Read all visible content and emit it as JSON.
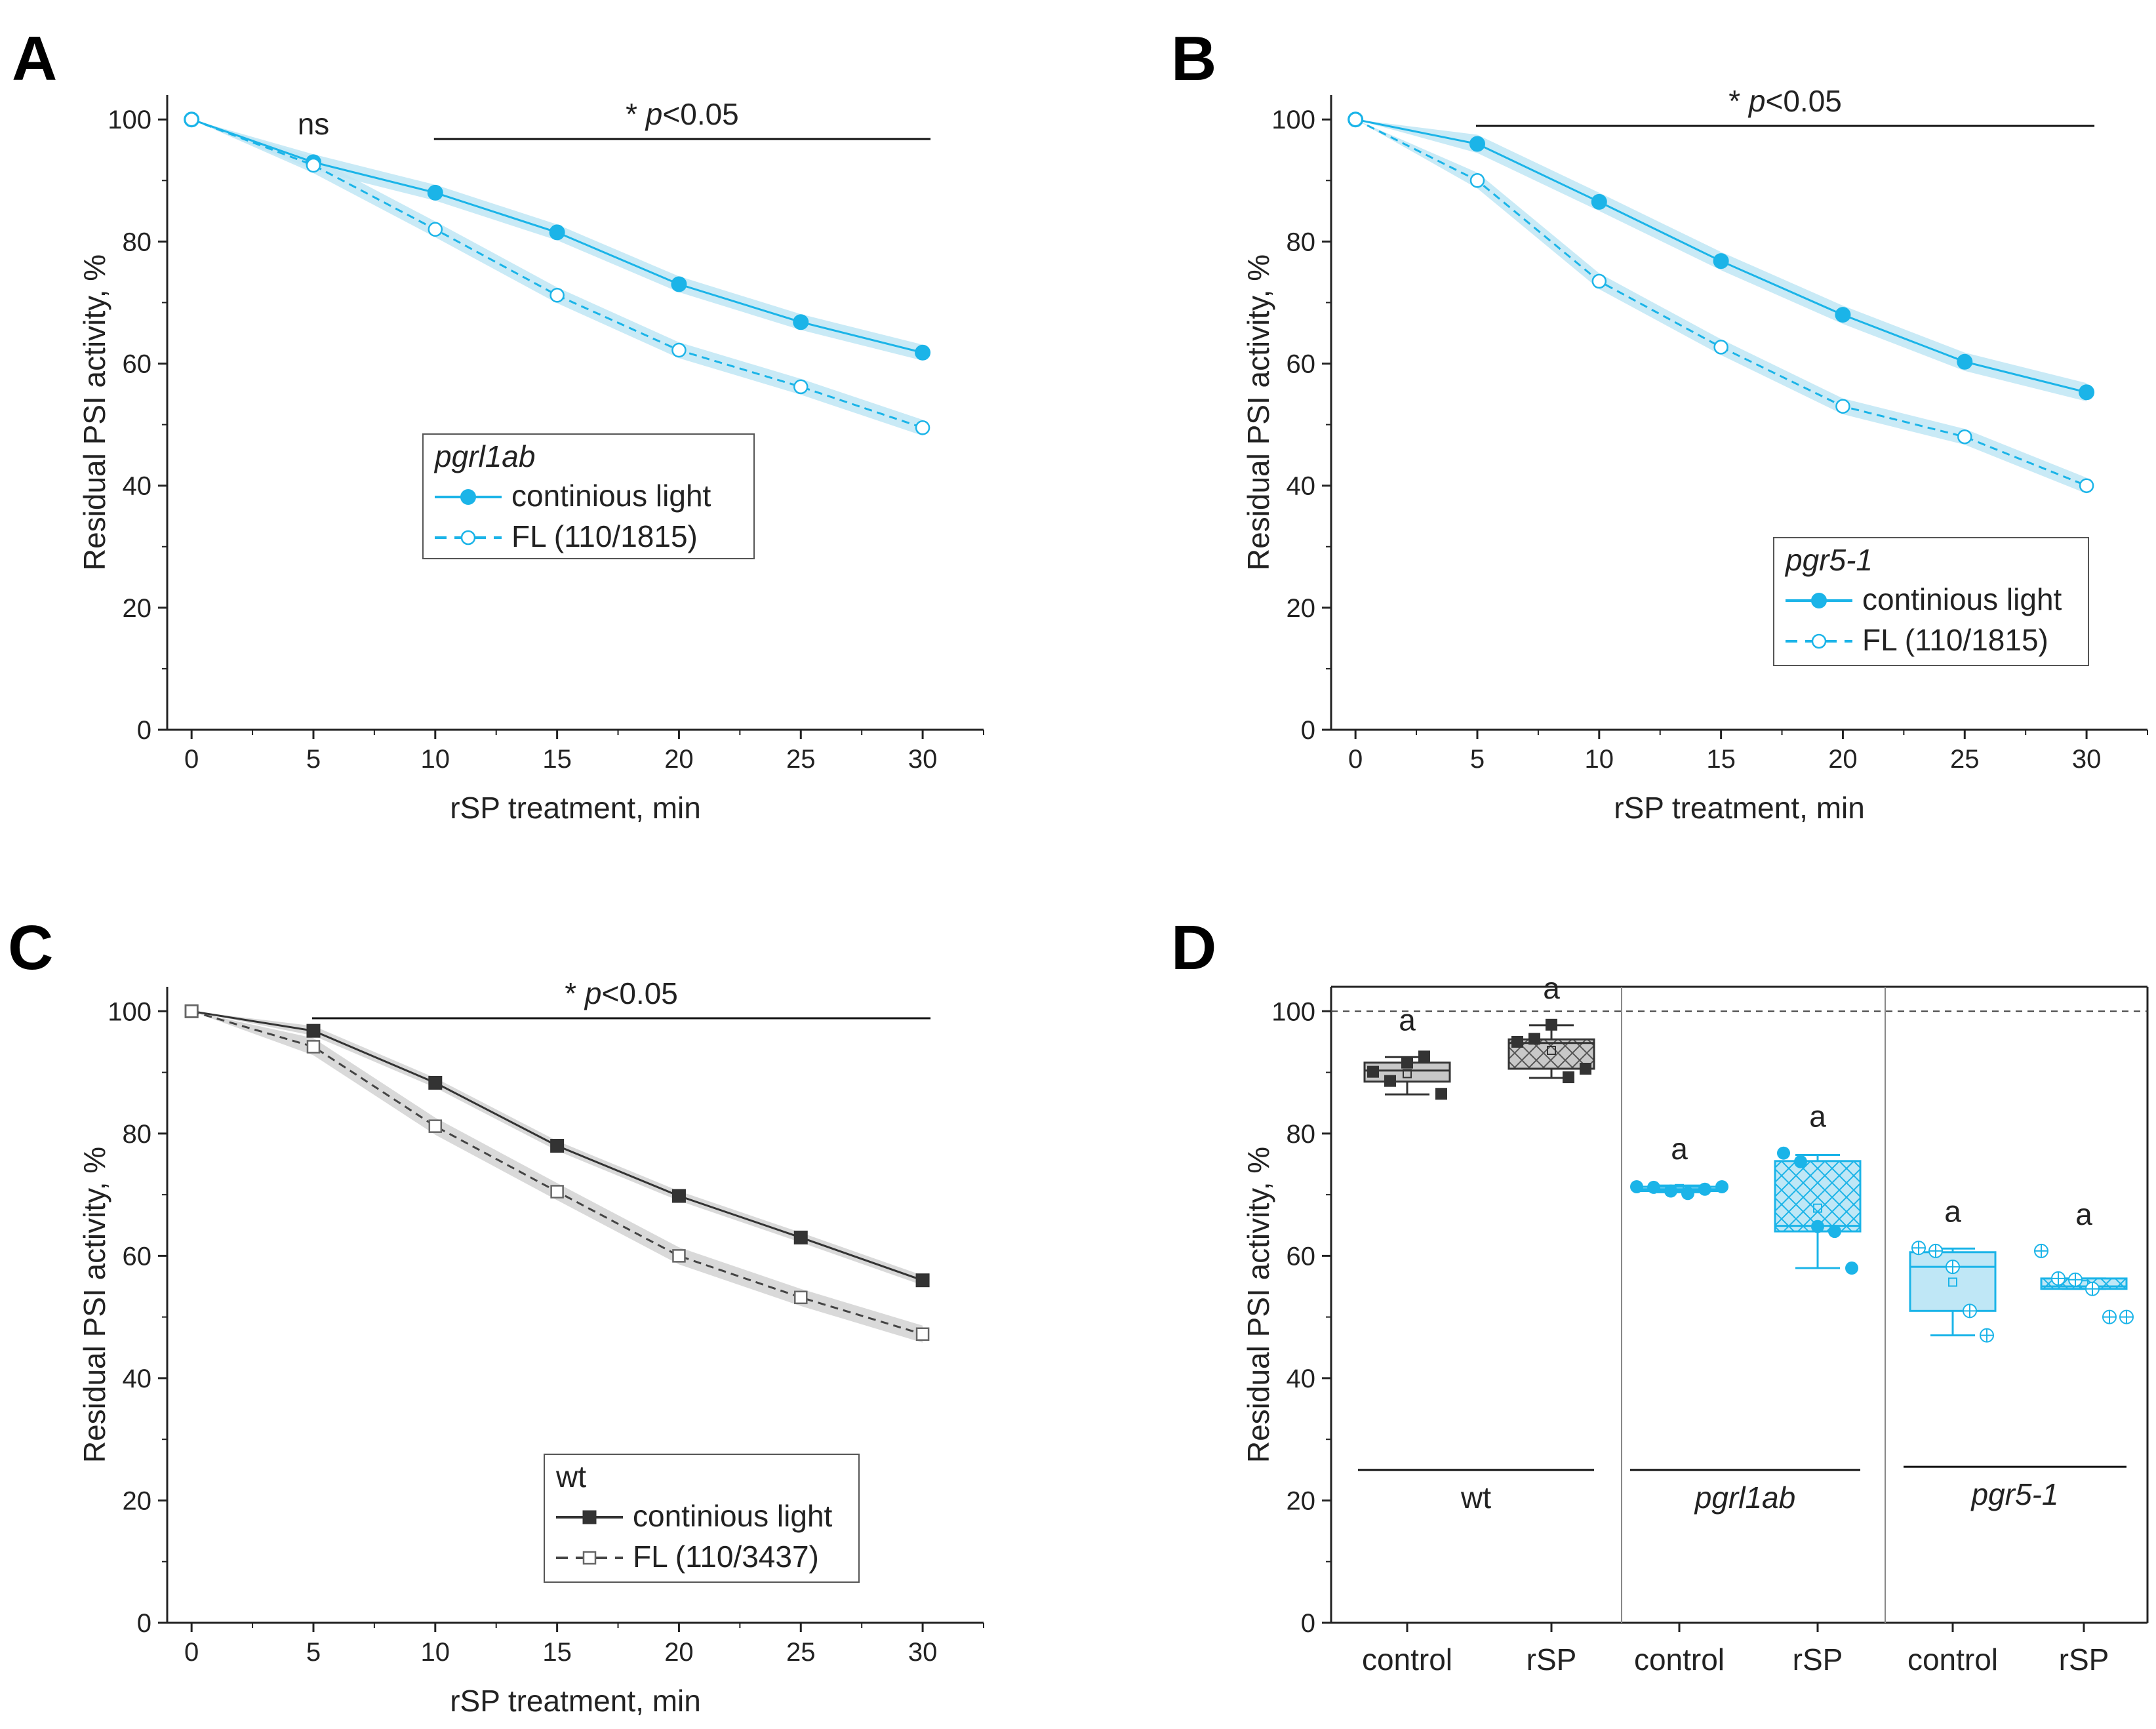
{
  "colors": {
    "cyan": "#1bb4e8",
    "cyan_band": "#bfe6f5",
    "dark": "#333333",
    "gray_band": "#d2d2d2",
    "box_fill_gray": "#c8c8c8",
    "box_fill_cyan": "#bfe7f6"
  },
  "chart_data": [
    {
      "panel": "A",
      "type": "line",
      "xlabel": "rSP treatment, min",
      "ylabel": "Residual PSI activity, %",
      "xlim": [
        -1,
        32.5
      ],
      "ylim": [
        0,
        104
      ],
      "xticks": [
        0,
        5,
        10,
        15,
        20,
        25,
        30
      ],
      "yticks": [
        0,
        20,
        40,
        60,
        80,
        100
      ],
      "x": [
        0,
        5,
        10,
        15,
        20,
        25,
        30
      ],
      "series": [
        {
          "name": "continious light",
          "values": [
            100,
            93,
            88,
            81.5,
            73,
            66.8,
            61.8
          ],
          "marker": "filled-circle",
          "style": "solid",
          "color": "#1bb4e8",
          "band": 1.3
        },
        {
          "name": "FL (110/1815)",
          "values": [
            100,
            92.5,
            82,
            71.2,
            62.2,
            56.2,
            49.5
          ],
          "marker": "open-circle",
          "style": "dashed",
          "color": "#1bb4e8",
          "band": 1.3
        }
      ],
      "legend": {
        "title": "pgrl1ab",
        "position": "middle"
      },
      "annotations": [
        {
          "text": "ns",
          "x": 5
        },
        {
          "prefix": "* ",
          "p": "p",
          "rest": "<0.05",
          "x_start": 10,
          "x_end": 30
        }
      ]
    },
    {
      "panel": "B",
      "type": "line",
      "xlabel": "rSP treatment, min",
      "ylabel": "Residual PSI activity, %",
      "xlim": [
        -1,
        32.5
      ],
      "ylim": [
        0,
        104
      ],
      "xticks": [
        0,
        5,
        10,
        15,
        20,
        25,
        30
      ],
      "yticks": [
        0,
        20,
        40,
        60,
        80,
        100
      ],
      "x": [
        0,
        5,
        10,
        15,
        20,
        25,
        30
      ],
      "series": [
        {
          "name": "continious light",
          "values": [
            100,
            96,
            86.5,
            76.8,
            68,
            60.3,
            55.3
          ],
          "marker": "filled-circle",
          "style": "solid",
          "color": "#1bb4e8",
          "band": 1.5
        },
        {
          "name": "FL (110/1815)",
          "values": [
            100,
            90,
            73.5,
            62.7,
            53,
            48,
            40
          ],
          "marker": "open-circle",
          "style": "dashed",
          "color": "#1bb4e8",
          "band": 1.3
        }
      ],
      "legend": {
        "title": "pgr5-1",
        "position": "bottom-right"
      },
      "annotations": [
        {
          "prefix": "* ",
          "p": "p",
          "rest": "<0.05",
          "x_start": 5,
          "x_end": 30
        }
      ]
    },
    {
      "panel": "C",
      "type": "line",
      "xlabel": "rSP treatment, min",
      "ylabel": "Residual PSI activity, %",
      "xlim": [
        -1,
        32.5
      ],
      "ylim": [
        0,
        104
      ],
      "xticks": [
        0,
        5,
        10,
        15,
        20,
        25,
        30
      ],
      "yticks": [
        0,
        20,
        40,
        60,
        80,
        100
      ],
      "x": [
        0,
        5,
        10,
        15,
        20,
        25,
        30
      ],
      "series": [
        {
          "name": "continious light",
          "values": [
            100,
            96.8,
            88.3,
            78,
            69.8,
            63,
            56
          ],
          "marker": "filled-square",
          "style": "solid",
          "color": "#333333",
          "band": 0.8
        },
        {
          "name": "FL (110/3437)",
          "values": [
            100,
            94.2,
            81.2,
            70.5,
            60,
            53.2,
            47.2
          ],
          "marker": "open-square",
          "style": "dashed",
          "color": "#444444",
          "band": 1.4
        }
      ],
      "legend": {
        "title": "wt",
        "position": "bottom"
      },
      "annotations": [
        {
          "prefix": "* ",
          "p": "p",
          "rest": "<0.05",
          "x_start": 5,
          "x_end": 30
        }
      ]
    },
    {
      "panel": "D",
      "type": "box",
      "ylabel": "Residual PSI activity, %",
      "ylim": [
        0,
        104
      ],
      "yticks": [
        0,
        20,
        40,
        60,
        80,
        100
      ],
      "reference_line": 100,
      "categories": [
        "control",
        "rSP",
        "control",
        "rSP",
        "control",
        "rSP"
      ],
      "groups": [
        {
          "label": "wt",
          "italic": false,
          "line_y": 25
        },
        {
          "label": "pgrl1ab",
          "italic": true,
          "line_y": 25
        },
        {
          "label": "pgr5-1",
          "italic": true,
          "line_y": 25.5
        }
      ],
      "boxes": [
        {
          "group": "wt",
          "condition": "control",
          "color": "#333333",
          "fill": "#c8c8c8",
          "hatch": false,
          "marker": "square",
          "q1": 88.5,
          "median": 90.3,
          "q3": 91.6,
          "whisker_low": 86.4,
          "whisker_high": 92.5,
          "mean": 89.8,
          "points": [
            90.1,
            88.6,
            91.6,
            92.6,
            86.5
          ],
          "letter": "a"
        },
        {
          "group": "wt",
          "condition": "rSP",
          "color": "#333333",
          "fill": "#c8c8c8",
          "hatch": true,
          "marker": "square",
          "q1": 90.6,
          "median": 94.8,
          "q3": 95.4,
          "whisker_low": 89.1,
          "whisker_high": 97.7,
          "mean": 93.6,
          "points": [
            95,
            95.5,
            97.8,
            89.2,
            90.6
          ],
          "letter": "a"
        },
        {
          "group": "pgrl1ab",
          "condition": "control",
          "color": "#1bb4e8",
          "fill": "#bfe7f6",
          "hatch": false,
          "marker": "circle",
          "q1": 70.6,
          "median": 70.9,
          "q3": 71.3,
          "whisker_low": 70.4,
          "whisker_high": 71.5,
          "mean": 71.0,
          "points": [
            71.3,
            71.2,
            70.6,
            70.2,
            70.9,
            71.3
          ],
          "letter": "a"
        },
        {
          "group": "pgrl1ab",
          "condition": "rSP",
          "color": "#1bb4e8",
          "fill": "#bfe7f6",
          "hatch": true,
          "marker": "circle",
          "q1": 64,
          "median": 64.9,
          "q3": 75.5,
          "whisker_low": 58,
          "whisker_high": 76.5,
          "mean": 67.8,
          "points": [
            76.8,
            75.4,
            64.8,
            64,
            58
          ],
          "letter": "a"
        },
        {
          "group": "pgr5-1",
          "condition": "control",
          "color": "#1bb4e8",
          "fill": "#bfe7f6",
          "hatch": false,
          "marker": "circle-plus",
          "q1": 51,
          "median": 58.2,
          "q3": 60.6,
          "whisker_low": 47,
          "whisker_high": 61.2,
          "mean": 55.7,
          "points": [
            61.3,
            60.8,
            58.2,
            51,
            47
          ],
          "letter": "a"
        },
        {
          "group": "pgr5-1",
          "condition": "rSP",
          "color": "#1bb4e8",
          "fill": "#bfe7f6",
          "hatch": true,
          "marker": "circle-plus",
          "q1": 54.6,
          "median": 55,
          "q3": 56.3,
          "whisker_low": 54.6,
          "whisker_high": 56.3,
          "mean": 55.3,
          "points": [
            60.8,
            56.3,
            56.1,
            54.6,
            50,
            50
          ],
          "letter": "a"
        }
      ]
    }
  ]
}
